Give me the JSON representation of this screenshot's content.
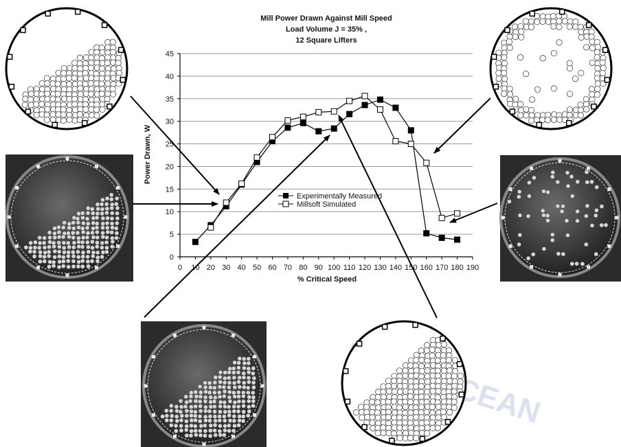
{
  "chart_data": {
    "type": "line",
    "title": [
      "Mill Power Drawn  Against Mill Speed",
      "Load Volume J = 35% ,",
      "12 Square Lifters"
    ],
    "xlabel": "% Critical Speed",
    "ylabel": "Power Drawn,  W",
    "xlim": [
      0,
      190
    ],
    "ylim": [
      0,
      45
    ],
    "xticks": [
      "0",
      "10",
      "20",
      "30",
      "40",
      "50",
      "60",
      "70",
      "80",
      "90",
      "100",
      "110",
      "120",
      "130",
      "140",
      "150",
      "160",
      "170",
      "180",
      "190"
    ],
    "yticks": [
      "0",
      "5",
      "10",
      "15",
      "20",
      "25",
      "30",
      "35",
      "40",
      "45"
    ],
    "grid": "horizontal",
    "legend_position": "center",
    "series": [
      {
        "name": "Experimentally Measured",
        "marker": "filled-square",
        "color": "#000000",
        "x": [
          10,
          20,
          30,
          40,
          50,
          60,
          70,
          80,
          90,
          100,
          110,
          120,
          130,
          140,
          150,
          160,
          170,
          180
        ],
        "y": [
          3.3,
          7.0,
          11.2,
          16.0,
          21.0,
          25.6,
          28.6,
          29.6,
          27.8,
          28.4,
          31.6,
          33.6,
          34.8,
          33.0,
          28.0,
          5.2,
          4.2,
          3.8
        ]
      },
      {
        "name": "Millsoft Simulated",
        "marker": "open-square",
        "color": "#000000",
        "x": [
          20,
          30,
          40,
          50,
          60,
          70,
          80,
          90,
          100,
          110,
          120,
          130,
          140,
          150,
          160,
          170,
          180
        ],
        "y": [
          6.5,
          12.0,
          16.2,
          22.0,
          26.5,
          30.2,
          31.0,
          32.0,
          32.2,
          34.5,
          35.6,
          32.6,
          25.6,
          25.0,
          20.8,
          8.6,
          9.6
        ]
      }
    ]
  },
  "watermark": "IME & OCEAN",
  "figure": {
    "point_color": "#000000",
    "photo_color": "#2b2b2b"
  }
}
